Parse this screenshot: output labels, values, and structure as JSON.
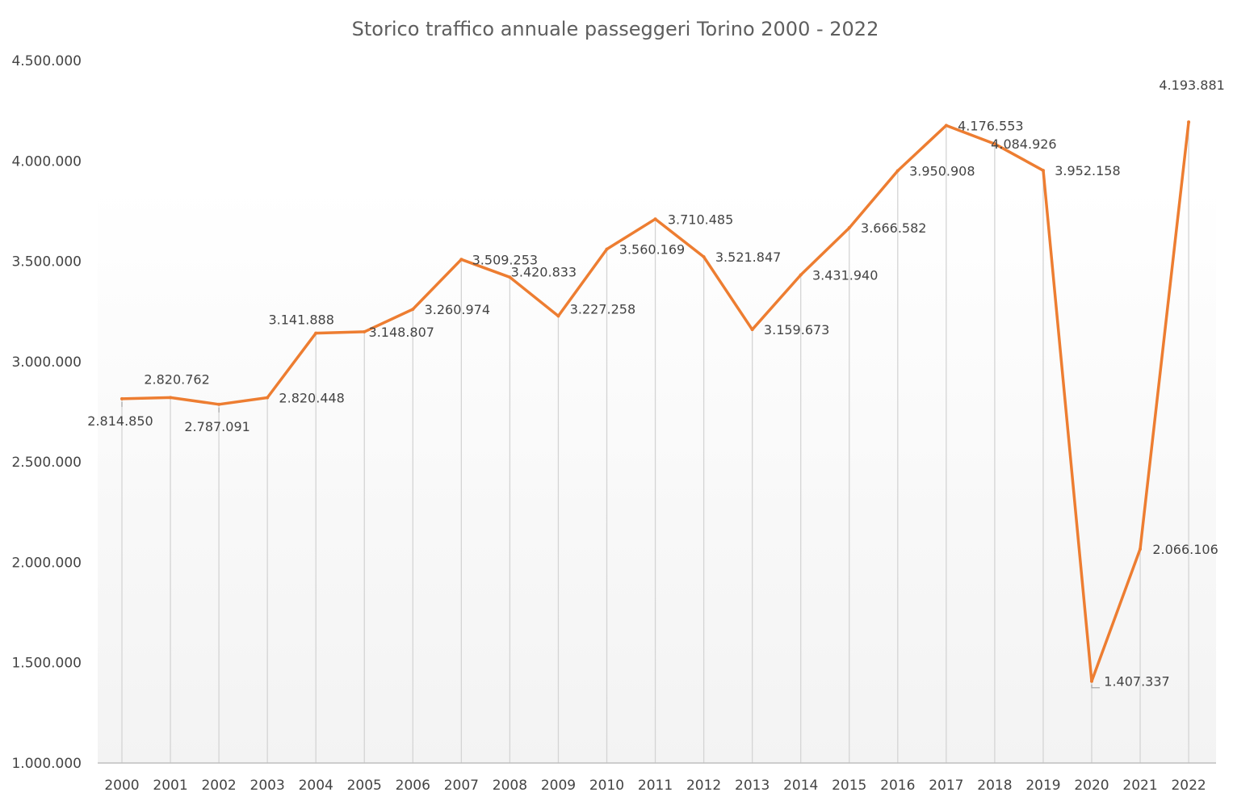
{
  "chart_data": {
    "type": "line",
    "title": "Storico traffico annuale passeggeri Torino 2000 - 2022",
    "xlabel": "",
    "ylabel": "",
    "ylim": [
      1000000,
      4500000
    ],
    "ytick_values": [
      1000000,
      1500000,
      2000000,
      2500000,
      3000000,
      3500000,
      4000000,
      4500000
    ],
    "ytick_labels": [
      "1.000.000",
      "1.500.000",
      "2.000.000",
      "2.500.000",
      "3.000.000",
      "3.500.000",
      "4.000.000",
      "4.500.000"
    ],
    "categories": [
      "2000",
      "2001",
      "2002",
      "2003",
      "2004",
      "2005",
      "2006",
      "2007",
      "2008",
      "2009",
      "2010",
      "2011",
      "2012",
      "2013",
      "2014",
      "2015",
      "2016",
      "2017",
      "2018",
      "2019",
      "2020",
      "2021",
      "2022"
    ],
    "series": [
      {
        "color": "#ED7D31",
        "values": [
          2814850,
          2820762,
          2787091,
          2820448,
          3141888,
          3148807,
          3260974,
          3509253,
          3420833,
          3227258,
          3560169,
          3710485,
          3521847,
          3159673,
          3431940,
          3666582,
          3950908,
          4176553,
          4084926,
          3952158,
          1407337,
          2066106,
          4193881
        ],
        "labels": [
          "2.814.850",
          "2.820.762",
          "2.787.091",
          "2.820.448",
          "3.141.888",
          "3.148.807",
          "3.260.974",
          "3.509.253",
          "3.420.833",
          "3.227.258",
          "3.560.169",
          "3.710.485",
          "3.521.847",
          "3.159.673",
          "3.431.940",
          "3.666.582",
          "3.950.908",
          "4.176.553",
          "4.084.926",
          "3.952.158",
          "1.407.337",
          "2.066.106",
          "4.193.881"
        ]
      }
    ],
    "grid": "vertical drop lines",
    "legend": "none",
    "colors": {
      "line": "#ED7D31",
      "drop_line": "#d4d4d4",
      "axis": "#bfbfbf",
      "text": "#444444",
      "title": "#5e5e5e"
    }
  }
}
